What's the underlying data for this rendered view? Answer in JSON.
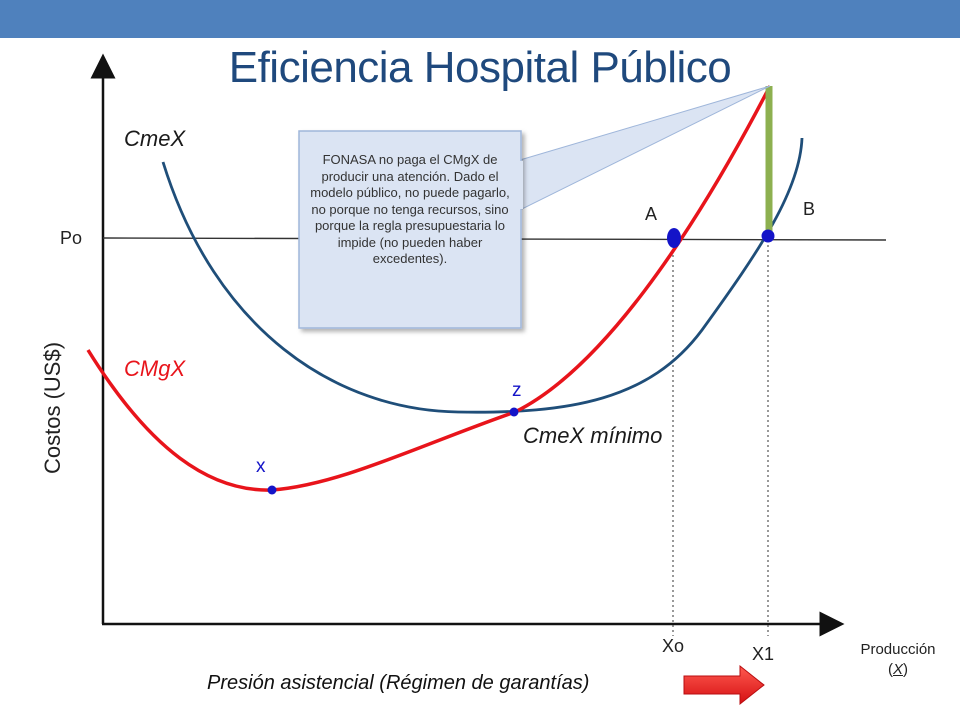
{
  "title": "Eficiencia Hospital Público",
  "colors": {
    "header_band": "#4f81bd",
    "title": "#1f497d",
    "cmex_curve": "#1f4e79",
    "cmgx_curve": "#e8141b",
    "points": "#1414c8",
    "gap_bar": "#8db050",
    "callout_fill": "#dbe4f3",
    "arrow": "#e8141b"
  },
  "axes": {
    "y_title": "Costos (US$)",
    "x_title": "Producción",
    "x_unit": "X",
    "price_label": "Po",
    "x_ticks": [
      "Xo",
      "X1"
    ]
  },
  "curves": {
    "cmex_label": "CmeX",
    "cmgx_label": "CMgX",
    "cmex_min_label": "CmeX mínimo"
  },
  "points": {
    "a": "A",
    "b": "B",
    "z": "z",
    "x": "x"
  },
  "callout": {
    "text": "FONASA no paga el CMgX de producir una atención. Dado el modelo público, no puede pagarlo, no porque no tenga recursos, sino porque la regla presupuestaria lo impide (no pueden haber excedentes)."
  },
  "arrow_note": "Presión asistencial (Régimen de garantías)"
}
